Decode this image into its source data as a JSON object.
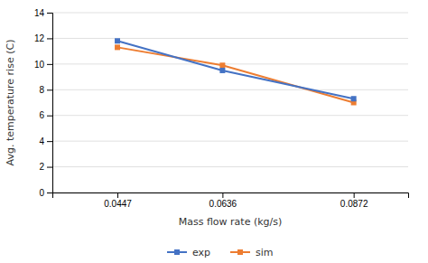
{
  "chart_data": {
    "type": "line",
    "x_label": "Mass flow rate (kg/s)",
    "y_label": "Avg. temperature rise (C)",
    "x": [
      0.0447,
      0.0636,
      0.0872
    ],
    "series": [
      {
        "name": "exp",
        "color": "#4472C4",
        "marker": "square",
        "values": [
          11.8,
          9.5,
          7.3
        ]
      },
      {
        "name": "sim",
        "color": "#ED7D31",
        "marker": "square",
        "values": [
          11.3,
          9.9,
          7.0
        ]
      }
    ],
    "xlim": [
      0.033,
      0.097
    ],
    "xticks": [
      0.0447,
      0.0636,
      0.0872
    ],
    "ylim": [
      0,
      14
    ],
    "yticks": [
      0,
      2,
      4,
      6,
      8,
      10,
      12,
      14
    ],
    "grid": true,
    "legend": "bottom"
  }
}
